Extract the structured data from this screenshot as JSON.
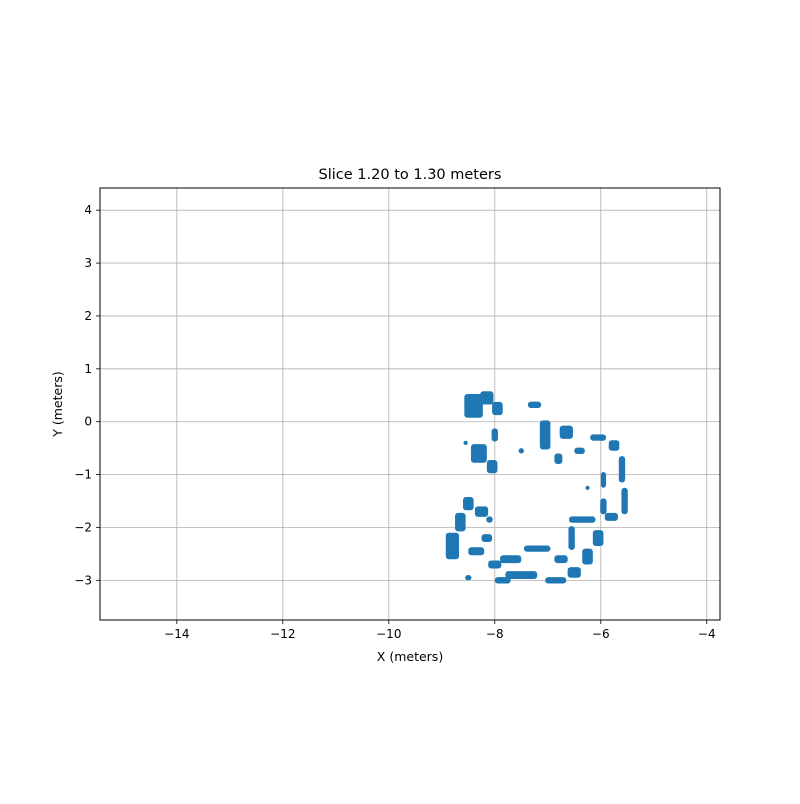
{
  "chart_data": {
    "type": "scatter",
    "title": "Slice 1.20 to 1.30 meters",
    "xlabel": "X (meters)",
    "ylabel": "Y (meters)",
    "xlim": [
      -15.45,
      -3.75
    ],
    "ylim": [
      -3.75,
      4.42
    ],
    "xticks": [
      -14,
      -12,
      -10,
      -8,
      -6,
      -4
    ],
    "yticks": [
      -3,
      -2,
      -1,
      0,
      1,
      2,
      3,
      4
    ],
    "xtick_labels": [
      "−14",
      "−12",
      "−10",
      "−8",
      "−6",
      "−4"
    ],
    "ytick_labels": [
      "−3",
      "−2",
      "−1",
      "0",
      "1",
      "2",
      "3",
      "4"
    ],
    "grid": true,
    "color": "#1f77b4",
    "series": [
      {
        "values": [
          {
            "x": -8.4,
            "y": 0.3,
            "w": 0.35,
            "h": 0.45
          },
          {
            "x": -8.15,
            "y": 0.45,
            "w": 0.25,
            "h": 0.25
          },
          {
            "x": -7.95,
            "y": 0.25,
            "w": 0.2,
            "h": 0.25
          },
          {
            "x": -8.3,
            "y": -0.6,
            "w": 0.3,
            "h": 0.35
          },
          {
            "x": -8.05,
            "y": -0.85,
            "w": 0.2,
            "h": 0.25
          },
          {
            "x": -8.0,
            "y": -0.25,
            "w": 0.12,
            "h": 0.25
          },
          {
            "x": -7.25,
            "y": 0.32,
            "w": 0.25,
            "h": 0.12
          },
          {
            "x": -7.05,
            "y": -0.25,
            "w": 0.2,
            "h": 0.55
          },
          {
            "x": -6.8,
            "y": -0.7,
            "w": 0.15,
            "h": 0.2
          },
          {
            "x": -6.65,
            "y": -0.2,
            "w": 0.25,
            "h": 0.25
          },
          {
            "x": -6.4,
            "y": -0.55,
            "w": 0.2,
            "h": 0.12
          },
          {
            "x": -6.05,
            "y": -0.3,
            "w": 0.3,
            "h": 0.12
          },
          {
            "x": -5.75,
            "y": -0.45,
            "w": 0.2,
            "h": 0.2
          },
          {
            "x": -5.6,
            "y": -0.9,
            "w": 0.12,
            "h": 0.5
          },
          {
            "x": -5.55,
            "y": -1.5,
            "w": 0.12,
            "h": 0.5
          },
          {
            "x": -5.8,
            "y": -1.8,
            "w": 0.25,
            "h": 0.15
          },
          {
            "x": -5.95,
            "y": -1.1,
            "w": 0.1,
            "h": 0.3
          },
          {
            "x": -5.95,
            "y": -1.6,
            "w": 0.12,
            "h": 0.3
          },
          {
            "x": -6.35,
            "y": -1.85,
            "w": 0.5,
            "h": 0.12
          },
          {
            "x": -6.05,
            "y": -2.2,
            "w": 0.2,
            "h": 0.3
          },
          {
            "x": -6.25,
            "y": -2.55,
            "w": 0.2,
            "h": 0.3
          },
          {
            "x": -6.5,
            "y": -2.85,
            "w": 0.25,
            "h": 0.2
          },
          {
            "x": -6.85,
            "y": -3.0,
            "w": 0.4,
            "h": 0.12
          },
          {
            "x": -7.5,
            "y": -2.9,
            "w": 0.6,
            "h": 0.15
          },
          {
            "x": -7.85,
            "y": -3.0,
            "w": 0.3,
            "h": 0.12
          },
          {
            "x": -6.55,
            "y": -2.2,
            "w": 0.12,
            "h": 0.45
          },
          {
            "x": -6.75,
            "y": -2.6,
            "w": 0.25,
            "h": 0.15
          },
          {
            "x": -7.2,
            "y": -2.4,
            "w": 0.5,
            "h": 0.12
          },
          {
            "x": -7.7,
            "y": -2.6,
            "w": 0.4,
            "h": 0.15
          },
          {
            "x": -8.0,
            "y": -2.7,
            "w": 0.25,
            "h": 0.15
          },
          {
            "x": -8.35,
            "y": -2.45,
            "w": 0.3,
            "h": 0.15
          },
          {
            "x": -8.15,
            "y": -2.2,
            "w": 0.2,
            "h": 0.15
          },
          {
            "x": -8.8,
            "y": -2.35,
            "w": 0.25,
            "h": 0.5
          },
          {
            "x": -8.65,
            "y": -1.9,
            "w": 0.2,
            "h": 0.35
          },
          {
            "x": -8.5,
            "y": -1.55,
            "w": 0.2,
            "h": 0.25
          },
          {
            "x": -8.25,
            "y": -1.7,
            "w": 0.25,
            "h": 0.2
          },
          {
            "x": -8.1,
            "y": -1.85,
            "w": 0.12,
            "h": 0.12
          },
          {
            "x": -8.5,
            "y": -2.95,
            "w": 0.12,
            "h": 0.1
          },
          {
            "x": -6.25,
            "y": -1.25,
            "w": 0.08,
            "h": 0.08
          },
          {
            "x": -8.55,
            "y": -0.4,
            "w": 0.08,
            "h": 0.08
          },
          {
            "x": -7.5,
            "y": -0.55,
            "w": 0.1,
            "h": 0.1
          }
        ]
      }
    ]
  }
}
